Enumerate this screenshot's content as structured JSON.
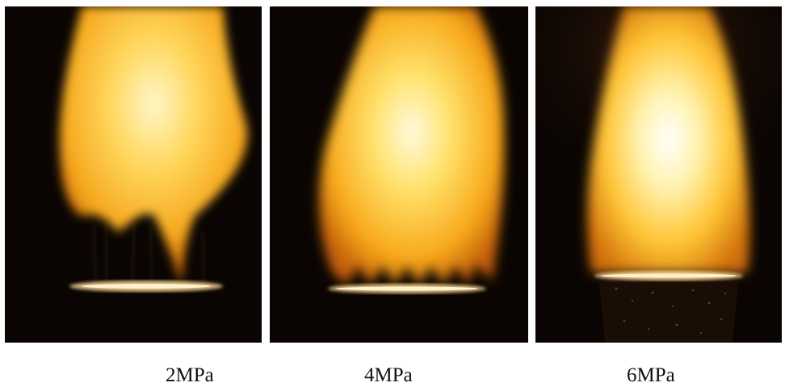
{
  "panels": [
    {
      "caption": "2MPa"
    },
    {
      "caption": "4MPa"
    },
    {
      "caption": "6MPa"
    }
  ],
  "colors": {
    "background": "#ffffff",
    "photo_dark": "#0a0503",
    "flame_outer": "#f4a21a",
    "flame_mid": "#ffc94a",
    "flame_core": "#fff6c8",
    "ember": "#ffdd99"
  }
}
